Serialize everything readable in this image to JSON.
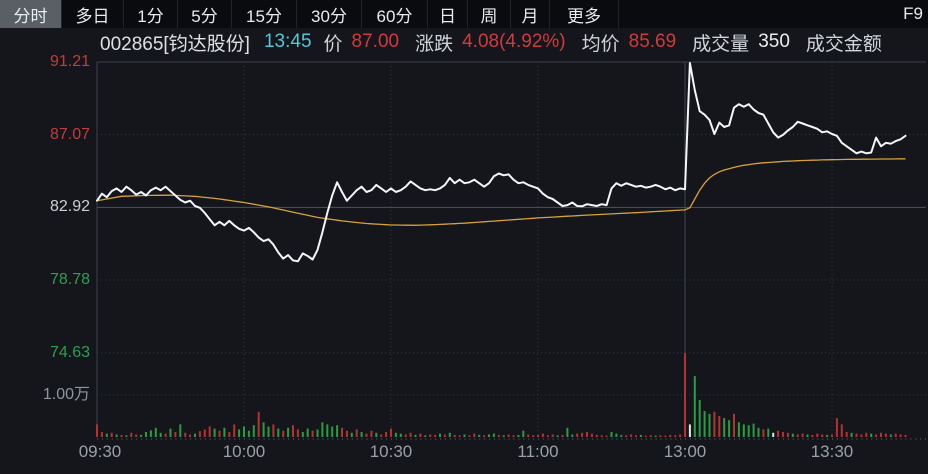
{
  "menu": {
    "items": [
      {
        "label": "分时",
        "active": true
      },
      {
        "label": "多日",
        "active": false
      },
      {
        "label": "1分",
        "active": false
      },
      {
        "label": "5分",
        "active": false
      },
      {
        "label": "15分",
        "active": false
      },
      {
        "label": "30分",
        "active": false
      },
      {
        "label": "60分",
        "active": false
      },
      {
        "label": "日",
        "active": false
      },
      {
        "label": "周",
        "active": false
      },
      {
        "label": "月",
        "active": false
      },
      {
        "label": "更多",
        "active": false
      }
    ],
    "f9_label": "F9"
  },
  "info_bar": {
    "code_name": "002865[钧达股份]",
    "time": "13:45",
    "price_label": "价",
    "price": "87.00",
    "change_label": "涨跌",
    "change": "4.08(4.92%)",
    "avg_label": "均价",
    "avg_price": "85.69",
    "volume_label": "成交量",
    "volume": "350",
    "amount_label": "成交金额"
  },
  "colors": {
    "up_red": "#c23d3c",
    "down_green": "#2f9e52",
    "flat_white": "#ccd0d6",
    "gray_label": "#8f959e",
    "price_line": "#f4f6f8",
    "avg_line": "#d7a23a",
    "vol_red": "#b33330",
    "vol_green": "#2d9b43",
    "vol_white": "#e4e7ea",
    "grid": "#333945",
    "prev_close_line": "#4c525b",
    "accent_cyan": "#55c6d6"
  },
  "chart_data": {
    "type": "line",
    "title": "002865 钧达股份 分时走势",
    "note": "x = minutes since 09:30; lunch break 11:30-13:00 compressed; data ends 13:45",
    "prev_close": 82.92,
    "y_axis": {
      "price_labels": [
        {
          "text": "91.21",
          "price": 91.21,
          "color": "#c23d3c"
        },
        {
          "text": "87.07",
          "price": 87.07,
          "color": "#c23d3c"
        },
        {
          "text": "82.92",
          "price": 82.92,
          "color": "#ccd0d6"
        },
        {
          "text": "78.78",
          "price": 78.78,
          "color": "#2f9e52"
        },
        {
          "text": "74.63",
          "price": 74.63,
          "color": "#2f9e52"
        }
      ],
      "volume_label": {
        "text": "1.00万",
        "wan": 1.0,
        "color": "#8f959e"
      },
      "price_range": [
        74.63,
        91.21
      ],
      "grid_dotted_prices": [
        87.07,
        78.78,
        74.63
      ],
      "grid_solid_price": 82.92
    },
    "x_axis": {
      "tick_labels": [
        "09:30",
        "10:00",
        "10:30",
        "11:00",
        "13:00",
        "13:30"
      ],
      "tick_minutes": [
        0,
        30,
        60,
        90,
        120,
        150
      ],
      "highlight_minute": 120,
      "minutes_visible": 166
    },
    "series": [
      {
        "name": "price",
        "values": [
          83.3,
          83.7,
          83.5,
          83.85,
          84.0,
          83.8,
          84.1,
          83.9,
          83.65,
          83.8,
          83.6,
          83.9,
          84.05,
          83.9,
          84.1,
          83.85,
          83.6,
          83.35,
          83.2,
          83.3,
          83.0,
          82.9,
          82.6,
          82.25,
          81.9,
          82.1,
          81.9,
          82.15,
          81.9,
          81.7,
          81.6,
          81.75,
          81.5,
          81.2,
          81.0,
          81.1,
          80.8,
          80.35,
          80.0,
          80.2,
          79.9,
          79.85,
          80.3,
          80.15,
          79.95,
          80.5,
          81.5,
          82.6,
          83.6,
          84.35,
          83.8,
          83.3,
          83.6,
          83.9,
          84.1,
          83.8,
          83.9,
          84.2,
          84.0,
          83.8,
          84.0,
          83.8,
          83.9,
          84.1,
          84.4,
          84.2,
          84.0,
          83.9,
          83.95,
          83.9,
          84.0,
          84.2,
          84.6,
          84.3,
          84.5,
          84.3,
          84.35,
          84.5,
          84.3,
          84.1,
          84.3,
          84.7,
          84.85,
          84.75,
          84.8,
          84.5,
          84.3,
          84.35,
          84.2,
          84.1,
          84.0,
          83.7,
          83.5,
          83.4,
          83.2,
          83.0,
          83.05,
          83.2,
          83.0,
          82.98,
          83.1,
          83.05,
          83.0,
          83.1,
          83.05,
          84.0,
          84.3,
          84.15,
          84.3,
          84.2,
          84.1,
          84.15,
          84.05,
          84.1,
          84.2,
          84.1,
          83.95,
          84.05,
          83.9,
          84.0,
          83.95,
          91.15,
          89.6,
          88.4,
          88.2,
          87.9,
          87.1,
          87.75,
          87.5,
          87.6,
          88.6,
          88.8,
          88.65,
          88.8,
          88.5,
          88.3,
          88.2,
          87.7,
          87.2,
          86.9,
          87.05,
          87.3,
          87.5,
          87.8,
          87.7,
          87.6,
          87.5,
          87.4,
          87.2,
          87.25,
          87.1,
          87.0,
          86.6,
          86.4,
          86.2,
          86.0,
          86.1,
          86.0,
          86.05,
          86.9,
          86.4,
          86.6,
          86.55,
          86.7,
          86.8,
          87.0
        ]
      },
      {
        "name": "avg_price",
        "control_points": [
          [
            0,
            83.3
          ],
          [
            5,
            83.55
          ],
          [
            10,
            83.6
          ],
          [
            15,
            83.62
          ],
          [
            20,
            83.55
          ],
          [
            25,
            83.4
          ],
          [
            30,
            83.2
          ],
          [
            35,
            82.95
          ],
          [
            40,
            82.65
          ],
          [
            45,
            82.35
          ],
          [
            50,
            82.15
          ],
          [
            55,
            82.0
          ],
          [
            60,
            81.92
          ],
          [
            65,
            81.9
          ],
          [
            70,
            81.95
          ],
          [
            75,
            82.02
          ],
          [
            80,
            82.12
          ],
          [
            85,
            82.22
          ],
          [
            90,
            82.32
          ],
          [
            95,
            82.4
          ],
          [
            100,
            82.48
          ],
          [
            105,
            82.55
          ],
          [
            110,
            82.62
          ],
          [
            115,
            82.7
          ],
          [
            120,
            82.78
          ],
          [
            121,
            82.9
          ],
          [
            122,
            83.4
          ],
          [
            123,
            83.9
          ],
          [
            124,
            84.3
          ],
          [
            125,
            84.6
          ],
          [
            126,
            84.8
          ],
          [
            127,
            84.95
          ],
          [
            128,
            85.05
          ],
          [
            130,
            85.2
          ],
          [
            132,
            85.32
          ],
          [
            134,
            85.4
          ],
          [
            136,
            85.46
          ],
          [
            138,
            85.5
          ],
          [
            140,
            85.54
          ],
          [
            143,
            85.58
          ],
          [
            146,
            85.61
          ],
          [
            150,
            85.64
          ],
          [
            154,
            85.66
          ],
          [
            158,
            85.67
          ],
          [
            162,
            85.68
          ],
          [
            165,
            85.69
          ]
        ]
      }
    ],
    "volume": {
      "unit": "hundredths of 万",
      "heights": [
        30,
        12,
        8,
        10,
        6,
        5,
        4,
        10,
        6,
        5,
        12,
        16,
        22,
        10,
        8,
        20,
        12,
        30,
        10,
        6,
        8,
        14,
        18,
        25,
        20,
        15,
        22,
        12,
        30,
        18,
        25,
        15,
        28,
        60,
        35,
        25,
        30,
        20,
        15,
        22,
        28,
        18,
        12,
        20,
        15,
        18,
        35,
        30,
        25,
        28,
        22,
        15,
        10,
        18,
        12,
        8,
        15,
        10,
        6,
        12,
        20,
        10,
        8,
        6,
        10,
        5,
        8,
        4,
        6,
        5,
        8,
        6,
        10,
        5,
        4,
        6,
        4,
        8,
        5,
        4,
        6,
        8,
        5,
        4,
        6,
        4,
        5,
        15,
        6,
        4,
        5,
        8,
        4,
        6,
        4,
        5,
        22,
        6,
        8,
        10,
        12,
        8,
        5,
        4,
        3,
        12,
        8,
        5,
        4,
        6,
        4,
        5,
        3,
        4,
        3,
        4,
        3,
        5,
        4,
        6,
        200,
        30,
        145,
        88,
        62,
        55,
        60,
        50,
        45,
        40,
        55,
        35,
        30,
        28,
        32,
        22,
        18,
        20,
        10,
        15,
        12,
        10,
        8,
        6,
        8,
        6,
        5,
        8,
        6,
        5,
        6,
        45,
        30,
        12,
        10,
        8,
        6,
        10,
        8,
        6,
        10,
        8,
        6,
        8,
        6,
        5
      ],
      "colors": "rrgrgrgrrgggggrgrgrrgrrrgrgrrggggrggrgrgrrggrgggggrrgrgrrgrrrggrrgrgrrgrgrrgrrgrggrgrrggrrrrrrgrggrrrrrrrgggrrrgrrgrrrrrrwggggrrggrgggggrgwrrrgrrgrrrgrrrrgrrrgrrrgrrr"
    }
  }
}
